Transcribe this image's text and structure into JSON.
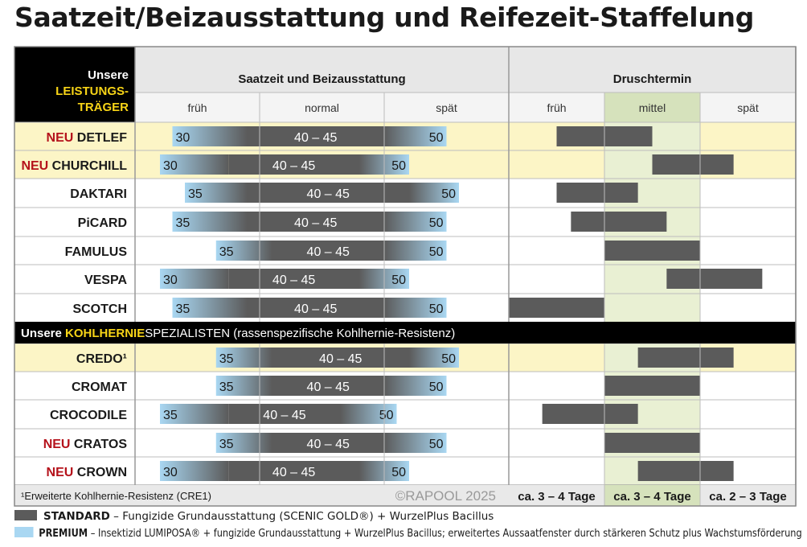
{
  "page_title": "Saatzeit/Beizausstattung und Reifezeit-Staffelung",
  "colors": {
    "standard": "#5b5b5b",
    "premium": "#a9d7f2",
    "header_bg": "#e7e7e7",
    "highlight_row": "#fcf5c6",
    "mittel_col": "#e9f0d3",
    "mittel_col_header": "#d6e2bc",
    "accent_red": "#b5121b",
    "accent_yellow": "#f7d417",
    "black": "#000000"
  },
  "header": {
    "corner_line1": "Unsere",
    "corner_line2": "LEISTUNGS-",
    "corner_line3": "TRÄGER",
    "saatzeit_title": "Saatzeit und Beizausstattung",
    "druschtermin_title": "Druschtermin",
    "saatzeit_cols": [
      "früh",
      "normal",
      "spät"
    ],
    "drusch_cols": [
      "früh",
      "mittel",
      "spät"
    ]
  },
  "section2": {
    "prefix": "Unsere ",
    "highlight": "KOHLHERNIE",
    "suffix": "SPEZIALISTEN (rassenspezifische Kohlhernie-Resistenz)"
  },
  "footer": {
    "note": "¹Erweiterte Kohlhernie-Resistenz (CRE1)",
    "copyright": "©RAPOOL 2025",
    "drusch_days": [
      "ca. 3 – 4 Tage",
      "ca. 3 – 4 Tage",
      "ca. 2 – 3 Tage"
    ]
  },
  "legend": {
    "standard_title": "STANDARD",
    "standard_text": " – Fungizide Grundausstattung (SCENIC GOLD®) + WurzelPlus Bacillus",
    "premium_title": "PREMIUM",
    "premium_text": " – Insektizid LUMIPOSA® + fungizide Grundausstattung + WurzelPlus Bacillus; erweitertes Aussaatfenster durch stärkeren Schutz plus Wachstumsförderung"
  },
  "chart_data": {
    "type": "table",
    "title": "Saatzeit/Beizausstattung und Reifezeit-Staffelung",
    "sowing_axis_note": "Saatzeit-Fenster: Beginn (PREMIUM) – STANDARD-Kernfenster – Ende (PREMIUM); Positionen 0–6 entsprechen früh | normal | spät (je 2 Einheiten)",
    "harvest_axis_note": "Druschtermin auf Skala 0–6 (früh 0–2, mittel 2–4, spät 4–6)",
    "rows": [
      {
        "name": "DETLEF",
        "neu": true,
        "section": 1,
        "highlight": true,
        "sow_start": 30,
        "standard_label": "40 – 45",
        "sow_end": 50,
        "sow_pos": [
          0.6,
          1.8,
          4.0,
          5.0
        ],
        "harvest": [
          1.0,
          3.0
        ]
      },
      {
        "name": "CHURCHILL",
        "neu": true,
        "section": 1,
        "highlight": true,
        "sow_start": 30,
        "standard_label": "40 – 45",
        "sow_end": 50,
        "sow_pos": [
          0.4,
          1.5,
          3.6,
          4.4
        ],
        "harvest": [
          3.0,
          4.7
        ]
      },
      {
        "name": "DAKTARI",
        "neu": false,
        "section": 1,
        "highlight": false,
        "sow_start": 35,
        "standard_label": "40 – 45",
        "sow_end": 50,
        "sow_pos": [
          0.8,
          1.8,
          4.4,
          5.2
        ],
        "harvest": [
          1.0,
          2.7
        ]
      },
      {
        "name": "PiCARD",
        "neu": false,
        "section": 1,
        "highlight": false,
        "sow_start": 35,
        "standard_label": "40 – 45",
        "sow_end": 50,
        "sow_pos": [
          0.6,
          1.8,
          4.0,
          5.0
        ],
        "harvest": [
          1.3,
          3.3
        ]
      },
      {
        "name": "FAMULUS",
        "neu": false,
        "section": 1,
        "highlight": false,
        "sow_start": 35,
        "standard_label": "40 – 45",
        "sow_end": 50,
        "sow_pos": [
          1.3,
          2.2,
          4.0,
          5.0
        ],
        "harvest": [
          2.0,
          4.0
        ]
      },
      {
        "name": "VESPA",
        "neu": false,
        "section": 1,
        "highlight": false,
        "sow_start": 30,
        "standard_label": "40 – 45",
        "sow_end": 50,
        "sow_pos": [
          0.4,
          1.5,
          3.6,
          4.4
        ],
        "harvest": [
          3.3,
          5.3
        ]
      },
      {
        "name": "SCOTCH",
        "neu": false,
        "section": 1,
        "highlight": false,
        "sow_start": 35,
        "standard_label": "40 – 45",
        "sow_end": 50,
        "sow_pos": [
          0.6,
          1.8,
          4.0,
          5.0
        ],
        "harvest": [
          0.0,
          2.0
        ]
      },
      {
        "name": "CREDO¹",
        "neu": false,
        "section": 2,
        "highlight": true,
        "sow_start": 35,
        "standard_label": "40 – 45",
        "sow_end": 50,
        "sow_pos": [
          1.3,
          2.2,
          4.4,
          5.2
        ],
        "harvest": [
          2.7,
          4.7
        ]
      },
      {
        "name": "CROMAT",
        "neu": false,
        "section": 2,
        "highlight": false,
        "sow_start": 35,
        "standard_label": "40 – 45",
        "sow_end": 50,
        "sow_pos": [
          1.3,
          2.2,
          4.0,
          5.0
        ],
        "harvest": [
          2.0,
          4.0
        ]
      },
      {
        "name": "CROCODILE",
        "neu": false,
        "section": 2,
        "highlight": false,
        "sow_start": 35,
        "standard_label": "40 – 45",
        "sow_end": 50,
        "sow_pos": [
          0.4,
          1.5,
          3.3,
          4.2
        ],
        "harvest": [
          0.7,
          2.7
        ]
      },
      {
        "name": "CRATOS",
        "neu": true,
        "section": 2,
        "highlight": false,
        "sow_start": 35,
        "standard_label": "40 – 45",
        "sow_end": 50,
        "sow_pos": [
          1.3,
          2.2,
          4.0,
          5.0
        ],
        "harvest": [
          2.0,
          4.0
        ]
      },
      {
        "name": "CROWN",
        "neu": true,
        "section": 2,
        "highlight": false,
        "sow_start": 30,
        "standard_label": "40 – 45",
        "sow_end": 50,
        "sow_pos": [
          0.4,
          1.5,
          3.6,
          4.4
        ],
        "harvest": [
          2.7,
          4.7
        ]
      }
    ],
    "neu_label": "NEU"
  }
}
